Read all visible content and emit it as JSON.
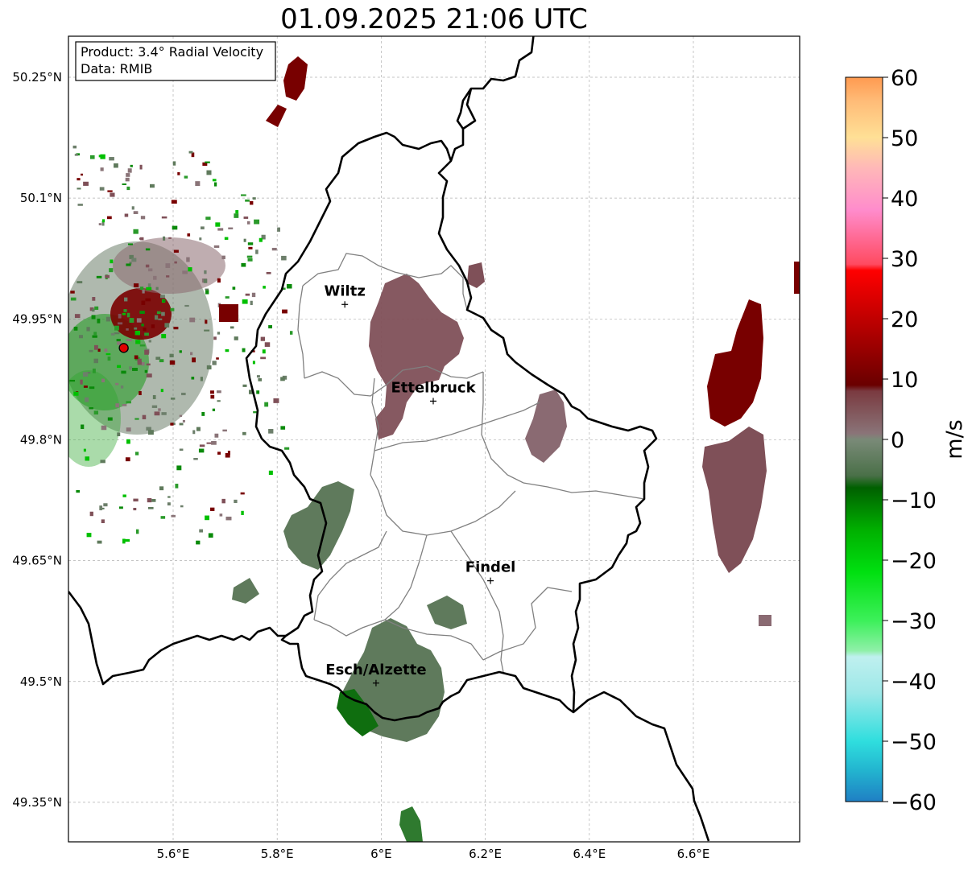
{
  "title": "01.09.2025 21:06 UTC",
  "info": {
    "product": "Product: 3.4° Radial Velocity",
    "data": "Data: RMIB"
  },
  "map": {
    "lon_range": [
      5.4,
      6.8
    ],
    "lat_range": [
      49.3,
      50.3
    ],
    "lon_ticks": [
      {
        "value": 5.6,
        "label": "5.6°E"
      },
      {
        "value": 5.8,
        "label": "5.8°E"
      },
      {
        "value": 6.0,
        "label": "6°E"
      },
      {
        "value": 6.2,
        "label": "6.2°E"
      },
      {
        "value": 6.4,
        "label": "6.4°E"
      },
      {
        "value": 6.6,
        "label": "6.6°E"
      }
    ],
    "lat_ticks": [
      {
        "value": 50.25,
        "label": "50.25°N"
      },
      {
        "value": 50.1,
        "label": "50.1°N"
      },
      {
        "value": 49.95,
        "label": "49.95°N"
      },
      {
        "value": 49.8,
        "label": "49.8°N"
      },
      {
        "value": 49.65,
        "label": "49.65°N"
      },
      {
        "value": 49.5,
        "label": "49.5°N"
      },
      {
        "value": 49.35,
        "label": "49.35°N"
      }
    ],
    "cities": [
      {
        "name": "Wiltz",
        "lon": 5.93,
        "lat": 49.968
      },
      {
        "name": "Ettelbruck",
        "lon": 6.1,
        "lat": 49.848
      },
      {
        "name": "Findel",
        "lon": 6.21,
        "lat": 49.625
      },
      {
        "name": "Esch/Alzette",
        "lon": 5.99,
        "lat": 49.498
      }
    ],
    "radar_site": {
      "lon": 5.505,
      "lat": 49.914
    }
  },
  "colorbar": {
    "unit": "m/s",
    "min": -60,
    "max": 60,
    "ticks": [
      {
        "value": 60,
        "label": "60"
      },
      {
        "value": 50,
        "label": "50"
      },
      {
        "value": 40,
        "label": "40"
      },
      {
        "value": 30,
        "label": "30"
      },
      {
        "value": 20,
        "label": "20"
      },
      {
        "value": 10,
        "label": "10"
      },
      {
        "value": 0,
        "label": "0"
      },
      {
        "value": -10,
        "label": "−10"
      },
      {
        "value": -20,
        "label": "−20"
      },
      {
        "value": -30,
        "label": "−30"
      },
      {
        "value": -40,
        "label": "−40"
      },
      {
        "value": -50,
        "label": "−50"
      },
      {
        "value": -60,
        "label": "−60"
      }
    ],
    "stops": [
      {
        "value": -60,
        "color": "#1f7fc4"
      },
      {
        "value": -55,
        "color": "#22b3cf"
      },
      {
        "value": -50,
        "color": "#2fdede"
      },
      {
        "value": -42,
        "color": "#9de8e8"
      },
      {
        "value": -36,
        "color": "#bff0ef"
      },
      {
        "value": -35,
        "color": "#8ff0a8"
      },
      {
        "value": -30,
        "color": "#3cf05a"
      },
      {
        "value": -22,
        "color": "#00e010"
      },
      {
        "value": -15,
        "color": "#00b000"
      },
      {
        "value": -8,
        "color": "#006000"
      },
      {
        "value": -6,
        "color": "#4a7048"
      },
      {
        "value": 0,
        "color": "#7a8a78"
      },
      {
        "value": 1,
        "color": "#8a7478"
      },
      {
        "value": 8,
        "color": "#7a3a40"
      },
      {
        "value": 9,
        "color": "#6a0000"
      },
      {
        "value": 20,
        "color": "#c00000"
      },
      {
        "value": 28,
        "color": "#ff0000"
      },
      {
        "value": 29,
        "color": "#ff4a60"
      },
      {
        "value": 38,
        "color": "#ff8ccc"
      },
      {
        "value": 45,
        "color": "#ffb8b8"
      },
      {
        "value": 50,
        "color": "#ffe096"
      },
      {
        "value": 56,
        "color": "#ffbc78"
      },
      {
        "value": 60,
        "color": "#ff9a50"
      }
    ]
  }
}
